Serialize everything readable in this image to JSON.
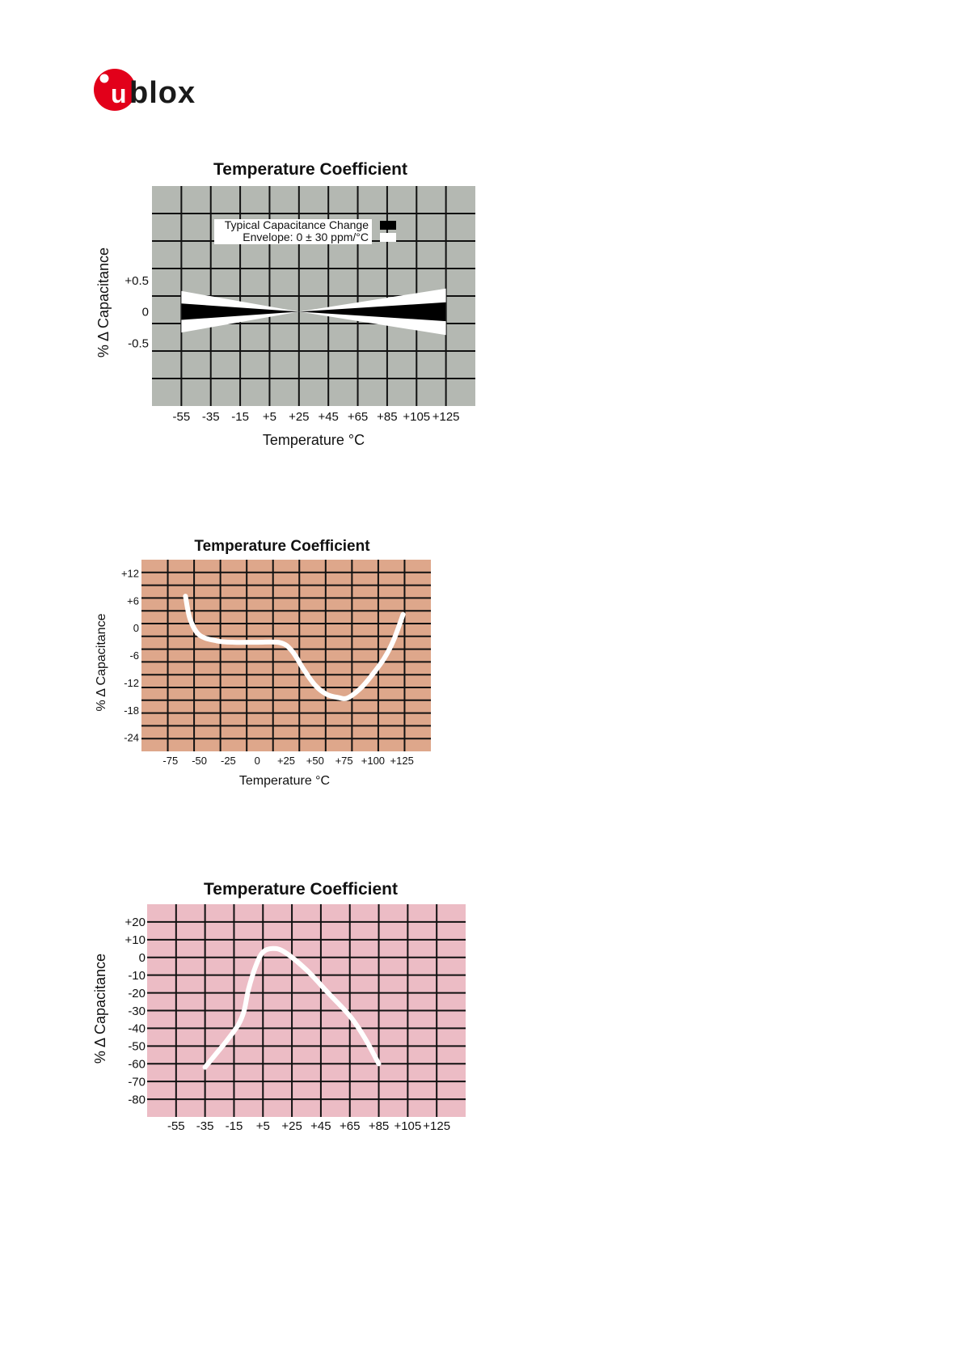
{
  "logo": {
    "text": "blox",
    "mark": "u",
    "brand_color": "#e2001a"
  },
  "chart_data": [
    {
      "type": "area",
      "title": "Temperature Coefficient",
      "xlabel": "Temperature °C",
      "ylabel": "% Δ Capacitance",
      "x_ticks": [
        "-55",
        "-35",
        "-15",
        "+5",
        "+25",
        "+45",
        "+65",
        "+85",
        "+105",
        "+125"
      ],
      "x_values": [
        -55,
        -35,
        -15,
        5,
        25,
        45,
        65,
        85,
        105,
        125
      ],
      "y_ticks": [
        "+0.5",
        "0",
        "-0.5"
      ],
      "y_tick_values": [
        0.5,
        0,
        -0.5
      ],
      "xlim": [
        -75,
        145
      ],
      "ylim": [
        -1.5,
        2
      ],
      "grid": true,
      "background_color": "#b4b8b2",
      "legend": {
        "position": "top-center",
        "entries": [
          {
            "label": "Typical Capacitance Change",
            "color": "#000000"
          },
          {
            "label": "Envelope: 0 ± 30 ppm/°C",
            "color": "#ffffff"
          }
        ]
      },
      "series": [
        {
          "name": "Envelope: 0 ± 30 ppm/°C",
          "x": [
            -55,
            25,
            125
          ],
          "upper": [
            0.33,
            0,
            0.37
          ],
          "lower": [
            -0.33,
            0,
            -0.37
          ],
          "color": "#ffffff"
        },
        {
          "name": "Typical Capacitance Change",
          "x": [
            -55,
            25,
            125
          ],
          "upper": [
            0.13,
            0,
            0.15
          ],
          "lower": [
            -0.13,
            0,
            -0.15
          ],
          "color": "#000000"
        }
      ]
    },
    {
      "type": "line",
      "title": "Temperature Coefficient",
      "xlabel": "Temperature °C",
      "ylabel": "% Δ Capacitance",
      "x_ticks": [
        "-75",
        "-50",
        "-25",
        "0",
        "+25",
        "+50",
        "+75",
        "+100",
        "+125"
      ],
      "x_values": [
        -75,
        -50,
        -25,
        0,
        25,
        50,
        75,
        100,
        125
      ],
      "y_ticks": [
        "+12",
        "+6",
        "0",
        "-6",
        "-12",
        "-18",
        "-24"
      ],
      "y_tick_values": [
        12,
        6,
        0,
        -6,
        -12,
        -18,
        -24
      ],
      "xlim": [
        -100,
        150
      ],
      "ylim": [
        -27,
        15
      ],
      "grid": true,
      "background_color": "#dea78b",
      "series": [
        {
          "x": [
            -62,
            -58,
            -50,
            -35,
            -20,
            0,
            20,
            30,
            40,
            50,
            60,
            70,
            78,
            90,
            100,
            110,
            118,
            126
          ],
          "y": [
            7,
            2,
            -1.5,
            -2.8,
            -3.1,
            -3.1,
            -3.2,
            -5,
            -9,
            -12.5,
            -14.5,
            -15.2,
            -15.3,
            -13,
            -10,
            -6.5,
            -2.5,
            3
          ],
          "color": "#ffffff"
        }
      ]
    },
    {
      "type": "line",
      "title": "Temperature Coefficient",
      "xlabel": "",
      "ylabel": "% Δ Capacitance",
      "x_ticks": [
        "-55",
        "-35",
        "-15",
        "+5",
        "+25",
        "+45",
        "+65",
        "+85",
        "+105",
        "+125"
      ],
      "x_values": [
        -55,
        -35,
        -15,
        5,
        25,
        45,
        65,
        85,
        105,
        125
      ],
      "y_ticks": [
        "+20",
        "+10",
        "0",
        "-10",
        "-20",
        "-30",
        "-40",
        "-50",
        "-60",
        "-70",
        "-80"
      ],
      "y_tick_values": [
        20,
        10,
        0,
        -10,
        -20,
        -30,
        -40,
        -50,
        -60,
        -70,
        -80
      ],
      "xlim": [
        -75,
        145
      ],
      "ylim": [
        -90,
        30
      ],
      "grid": true,
      "background_color": "#ecbcc5",
      "series": [
        {
          "x": [
            -35,
            -28,
            -20,
            -12,
            -8,
            -5,
            0,
            5,
            12,
            20,
            35,
            50,
            65,
            75,
            85
          ],
          "y": [
            -62,
            -55,
            -47,
            -38,
            -30,
            -18,
            -5,
            3,
            5,
            3,
            -7,
            -20,
            -33,
            -45,
            -60
          ],
          "color": "#ffffff"
        }
      ]
    }
  ]
}
